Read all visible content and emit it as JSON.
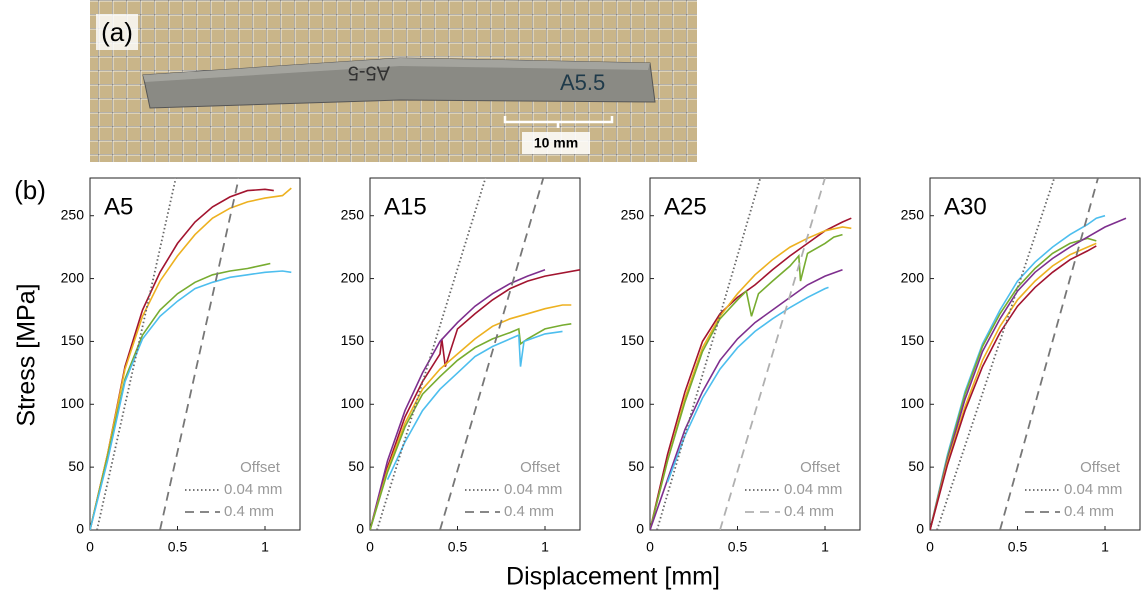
{
  "panel_a": "(a)",
  "panel_b": "(b)",
  "scale_bar": "10 mm",
  "specimen_label": "A5.5",
  "specimen_label_mirrored": "A5-5",
  "x_label": "Displacement [mm]",
  "y_label": "Stress [MPa]",
  "chart_data": [
    {
      "type": "line",
      "title": "A5",
      "xlim": [
        0,
        1.2
      ],
      "ylim": [
        0,
        280
      ],
      "xticks": [
        0,
        0.5,
        1
      ],
      "yticks": [
        0,
        50,
        100,
        150,
        200,
        250
      ],
      "legend": "lower right",
      "legend_title": "Offset",
      "series": [
        {
          "color": "#a2142f",
          "x": [
            0,
            0.1,
            0.2,
            0.3,
            0.4,
            0.5,
            0.6,
            0.7,
            0.8,
            0.9,
            1.0,
            1.05
          ],
          "values": [
            0,
            60,
            130,
            175,
            205,
            228,
            245,
            257,
            265,
            270,
            271,
            270
          ]
        },
        {
          "color": "#edb120",
          "x": [
            0,
            0.1,
            0.2,
            0.3,
            0.4,
            0.5,
            0.6,
            0.7,
            0.8,
            0.9,
            1.0,
            1.1,
            1.15
          ],
          "values": [
            0,
            60,
            128,
            170,
            198,
            218,
            235,
            248,
            256,
            261,
            264,
            266,
            272
          ]
        },
        {
          "color": "#77ac30",
          "x": [
            0,
            0.1,
            0.2,
            0.3,
            0.4,
            0.5,
            0.6,
            0.7,
            0.8,
            0.9,
            1.0,
            1.03
          ],
          "values": [
            0,
            58,
            120,
            155,
            175,
            188,
            197,
            203,
            206,
            208,
            211,
            212
          ]
        },
        {
          "color": "#4dbeee",
          "x": [
            0,
            0.1,
            0.2,
            0.3,
            0.4,
            0.5,
            0.6,
            0.7,
            0.8,
            0.9,
            1.0,
            1.1,
            1.15
          ],
          "values": [
            0,
            55,
            118,
            152,
            170,
            182,
            192,
            197,
            201,
            203,
            205,
            206,
            205
          ]
        },
        {
          "name": "0.04 mm",
          "color": "#666666",
          "style": "dotted",
          "x": [
            0.04,
            0.49
          ],
          "values": [
            0,
            280
          ]
        },
        {
          "name": "0.4 mm",
          "color": "#777777",
          "style": "dashed",
          "x": [
            0.4,
            0.85
          ],
          "values": [
            0,
            280
          ]
        }
      ]
    },
    {
      "type": "line",
      "title": "A15",
      "xlim": [
        0,
        1.2
      ],
      "ylim": [
        0,
        280
      ],
      "xticks": [
        0,
        0.5,
        1
      ],
      "yticks": [
        0,
        50,
        100,
        150,
        200,
        250
      ],
      "legend": "lower right",
      "legend_title": "Offset",
      "series": [
        {
          "color": "#a2142f",
          "x": [
            0,
            0.1,
            0.2,
            0.3,
            0.4,
            0.41,
            0.43,
            0.5,
            0.6,
            0.7,
            0.8,
            0.9,
            1.0,
            1.2
          ],
          "values": [
            0,
            50,
            90,
            118,
            140,
            152,
            130,
            160,
            172,
            183,
            192,
            198,
            202,
            207
          ]
        },
        {
          "color": "#7e2f8e",
          "x": [
            0,
            0.1,
            0.2,
            0.3,
            0.4,
            0.5,
            0.6,
            0.7,
            0.8,
            0.9,
            1.0
          ],
          "values": [
            0,
            55,
            95,
            125,
            150,
            165,
            178,
            188,
            196,
            202,
            207
          ]
        },
        {
          "color": "#edb120",
          "x": [
            0,
            0.1,
            0.2,
            0.3,
            0.4,
            0.5,
            0.6,
            0.7,
            0.8,
            0.9,
            1.0,
            1.1,
            1.15
          ],
          "values": [
            0,
            48,
            85,
            112,
            128,
            140,
            152,
            162,
            168,
            172,
            176,
            179,
            179
          ]
        },
        {
          "color": "#77ac30",
          "x": [
            0,
            0.1,
            0.2,
            0.3,
            0.4,
            0.5,
            0.6,
            0.7,
            0.8,
            0.85,
            0.86,
            0.9,
            1.0,
            1.1,
            1.15
          ],
          "values": [
            0,
            46,
            82,
            108,
            122,
            135,
            145,
            152,
            157,
            160,
            148,
            152,
            160,
            163,
            164
          ]
        },
        {
          "color": "#4dbeee",
          "x": [
            0.1,
            0.2,
            0.3,
            0.4,
            0.5,
            0.6,
            0.7,
            0.8,
            0.85,
            0.86,
            0.88,
            1.0,
            1.1
          ],
          "values": [
            40,
            70,
            95,
            112,
            125,
            138,
            146,
            152,
            155,
            130,
            150,
            156,
            158
          ]
        },
        {
          "name": "0.04 mm",
          "color": "#666666",
          "style": "dotted",
          "x": [
            0.04,
            0.66
          ],
          "values": [
            0,
            280
          ]
        },
        {
          "name": "0.4 mm",
          "color": "#777777",
          "style": "dashed",
          "x": [
            0.4,
            0.99
          ],
          "values": [
            0,
            280
          ]
        }
      ]
    },
    {
      "type": "line",
      "title": "A25",
      "xlim": [
        0,
        1.2
      ],
      "ylim": [
        0,
        280
      ],
      "xticks": [
        0,
        0.5,
        1
      ],
      "yticks": [
        0,
        50,
        100,
        150,
        200,
        250
      ],
      "legend": "lower right",
      "legend_title": "Offset",
      "series": [
        {
          "color": "#a2142f",
          "x": [
            0,
            0.1,
            0.2,
            0.3,
            0.4,
            0.5,
            0.6,
            0.7,
            0.8,
            0.9,
            1.0,
            1.1,
            1.15
          ],
          "values": [
            0,
            60,
            110,
            150,
            172,
            185,
            195,
            207,
            218,
            228,
            238,
            245,
            248
          ]
        },
        {
          "color": "#edb120",
          "x": [
            0,
            0.1,
            0.2,
            0.3,
            0.4,
            0.5,
            0.6,
            0.7,
            0.8,
            0.9,
            1.0,
            1.1,
            1.15
          ],
          "values": [
            0,
            55,
            105,
            145,
            170,
            188,
            203,
            215,
            225,
            232,
            238,
            241,
            240
          ]
        },
        {
          "color": "#77ac30",
          "x": [
            0,
            0.1,
            0.2,
            0.3,
            0.4,
            0.5,
            0.55,
            0.58,
            0.62,
            0.7,
            0.8,
            0.85,
            0.86,
            0.9,
            1.0,
            1.05,
            1.1
          ],
          "values": [
            0,
            55,
            102,
            142,
            168,
            183,
            190,
            170,
            188,
            198,
            210,
            218,
            198,
            220,
            228,
            233,
            235
          ]
        },
        {
          "color": "#7e2f8e",
          "x": [
            0,
            0.1,
            0.2,
            0.3,
            0.4,
            0.5,
            0.6,
            0.7,
            0.8,
            0.9,
            1.0,
            1.1
          ],
          "values": [
            0,
            40,
            80,
            110,
            135,
            152,
            165,
            175,
            185,
            195,
            202,
            207
          ]
        },
        {
          "color": "#4dbeee",
          "x": [
            0.1,
            0.2,
            0.3,
            0.4,
            0.5,
            0.6,
            0.7,
            0.8,
            0.9,
            1.0,
            1.02
          ],
          "values": [
            38,
            75,
            105,
            128,
            145,
            158,
            168,
            177,
            185,
            192,
            193
          ]
        },
        {
          "name": "0.04 mm",
          "color": "#666666",
          "style": "dotted",
          "x": [
            0.04,
            0.63
          ],
          "values": [
            0,
            280
          ]
        },
        {
          "name": "0.4 mm",
          "color": "#b0b0b0",
          "style": "dashed",
          "x": [
            0.4,
            1.0
          ],
          "values": [
            0,
            280
          ]
        }
      ]
    },
    {
      "type": "line",
      "title": "A30",
      "xlim": [
        0,
        1.2
      ],
      "ylim": [
        0,
        280
      ],
      "xticks": [
        0,
        0.5,
        1
      ],
      "yticks": [
        0,
        50,
        100,
        150,
        200,
        250
      ],
      "legend": "lower right",
      "legend_title": "Offset",
      "series": [
        {
          "color": "#4dbeee",
          "x": [
            0,
            0.1,
            0.2,
            0.3,
            0.4,
            0.5,
            0.6,
            0.7,
            0.8,
            0.9,
            0.95,
            1.0
          ],
          "values": [
            0,
            60,
            110,
            148,
            175,
            198,
            213,
            225,
            235,
            243,
            248,
            250
          ]
        },
        {
          "color": "#77ac30",
          "x": [
            0,
            0.1,
            0.2,
            0.3,
            0.4,
            0.5,
            0.6,
            0.7,
            0.8,
            0.9,
            0.95
          ],
          "values": [
            0,
            58,
            108,
            146,
            172,
            193,
            208,
            220,
            228,
            232,
            230
          ]
        },
        {
          "color": "#7e2f8e",
          "x": [
            0,
            0.1,
            0.2,
            0.3,
            0.4,
            0.5,
            0.6,
            0.7,
            0.8,
            0.9,
            1.0,
            1.12
          ],
          "values": [
            0,
            56,
            104,
            142,
            168,
            190,
            205,
            216,
            225,
            233,
            241,
            248
          ]
        },
        {
          "color": "#edb120",
          "x": [
            0,
            0.1,
            0.2,
            0.3,
            0.4,
            0.5,
            0.6,
            0.7,
            0.8,
            0.9,
            0.95
          ],
          "values": [
            0,
            54,
            98,
            135,
            162,
            183,
            198,
            210,
            219,
            225,
            228
          ]
        },
        {
          "color": "#a2142f",
          "x": [
            0,
            0.1,
            0.2,
            0.3,
            0.4,
            0.5,
            0.6,
            0.7,
            0.8,
            0.9,
            0.95
          ],
          "values": [
            0,
            52,
            95,
            130,
            157,
            178,
            193,
            205,
            215,
            222,
            226
          ]
        },
        {
          "name": "0.04 mm",
          "color": "#666666",
          "style": "dotted",
          "x": [
            0.04,
            0.71
          ],
          "values": [
            0,
            280
          ]
        },
        {
          "name": "0.4 mm",
          "color": "#777777",
          "style": "dashed",
          "x": [
            0.4,
            0.96
          ],
          "values": [
            0,
            280
          ]
        }
      ]
    }
  ]
}
